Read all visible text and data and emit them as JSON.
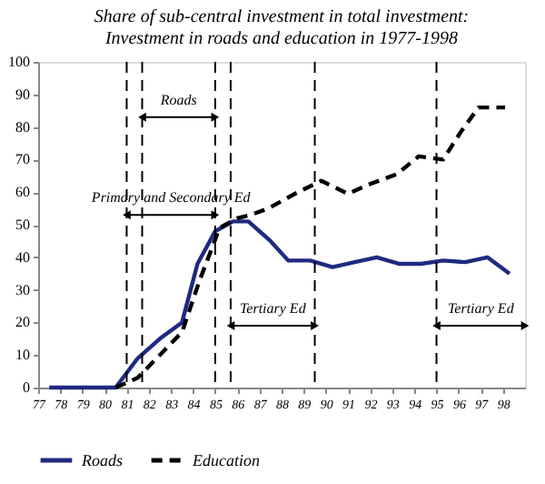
{
  "chart_data": {
    "type": "line",
    "title": [
      "Share of sub-central investment in total investment:",
      "Investment in roads and education in 1977-1998"
    ],
    "xlim": [
      77,
      99
    ],
    "xticks": [
      77,
      78,
      79,
      80,
      81,
      82,
      83,
      84,
      85,
      86,
      87,
      88,
      89,
      90,
      91,
      92,
      93,
      94,
      95,
      96,
      97,
      98
    ],
    "ylim": [
      0,
      100
    ],
    "yticks": [
      0,
      10,
      20,
      30,
      40,
      50,
      60,
      70,
      80,
      90,
      100
    ],
    "grid": false,
    "legend": "bottom",
    "series": [
      {
        "name": "Roads",
        "color": "#1f2a80",
        "line_style": "solid",
        "x": [
          77.5,
          80.5,
          81.5,
          82.5,
          83.5,
          84.2,
          85,
          85.8,
          86.5,
          87.5,
          88.3,
          89.3,
          90.3,
          91.3,
          92.3,
          93.3,
          94.3,
          95.3,
          96.3,
          97.3,
          98.3
        ],
        "values": [
          0,
          0,
          9,
          15,
          20,
          38,
          48,
          51,
          51,
          45,
          39,
          39,
          37,
          38.5,
          40,
          38,
          38,
          39,
          38.5,
          40,
          35
        ]
      },
      {
        "name": "Education",
        "color": "#000000",
        "line_style": "dashed",
        "x": [
          80.5,
          81.5,
          82.5,
          83.5,
          84.3,
          85.2,
          86,
          86.6,
          87.4,
          88.6,
          89.8,
          91,
          92,
          93.2,
          94.2,
          95.3,
          96.1,
          96.9,
          98.1
        ],
        "values": [
          0,
          3,
          10,
          17,
          33,
          49,
          52,
          53,
          55,
          59.5,
          63.5,
          59.5,
          62.5,
          65.5,
          71,
          70,
          78.5,
          86,
          86
        ]
      }
    ],
    "ref_lines": [
      {
        "axis": "x",
        "value": 81,
        "line_style": "dashed",
        "color": "#000000"
      },
      {
        "axis": "x",
        "value": 81.7,
        "line_style": "dashed",
        "color": "#000000"
      },
      {
        "axis": "x",
        "value": 85,
        "line_style": "dashed",
        "color": "#000000"
      },
      {
        "axis": "x",
        "value": 85.7,
        "line_style": "dashed",
        "color": "#000000"
      },
      {
        "axis": "x",
        "value": 89.5,
        "line_style": "dashed",
        "color": "#000000"
      },
      {
        "axis": "x",
        "value": 95,
        "line_style": "dashed",
        "color": "#000000"
      }
    ],
    "annotations": [
      "Roads",
      "Primary and Secondary Ed",
      "Tertiary Ed",
      "Tertiary Ed"
    ]
  }
}
